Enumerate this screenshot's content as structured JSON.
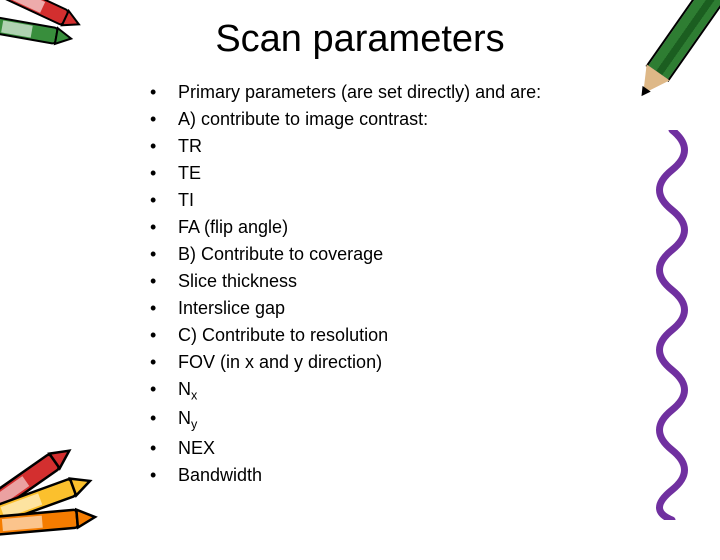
{
  "title": "Scan parameters",
  "bullets": [
    {
      "text": "Primary parameters (are set directly) and are:"
    },
    {
      "text": "A) contribute to image contrast:"
    },
    {
      "text": "TR"
    },
    {
      "text": "TE"
    },
    {
      "text": "TI"
    },
    {
      "text": "FA (flip angle)"
    },
    {
      "text": "B) Contribute to coverage"
    },
    {
      "text": "Slice thickness"
    },
    {
      "text": "Interslice gap"
    },
    {
      "text": "C) Contribute to resolution"
    },
    {
      "text": "FOV (in x and y direction)"
    },
    {
      "text": "N",
      "sub": "x"
    },
    {
      "text": "N",
      "sub": "y"
    },
    {
      "text": "NEX"
    },
    {
      "text": "Bandwidth"
    }
  ],
  "colors": {
    "squiggle": "#7030a0",
    "crayon_red": "#d32f2f",
    "crayon_orange": "#f57c00",
    "crayon_green": "#388e3c",
    "crayon_yellow": "#fbc02d",
    "crayon_purple": "#7b1fa2",
    "crayon_blue": "#1976d2"
  }
}
